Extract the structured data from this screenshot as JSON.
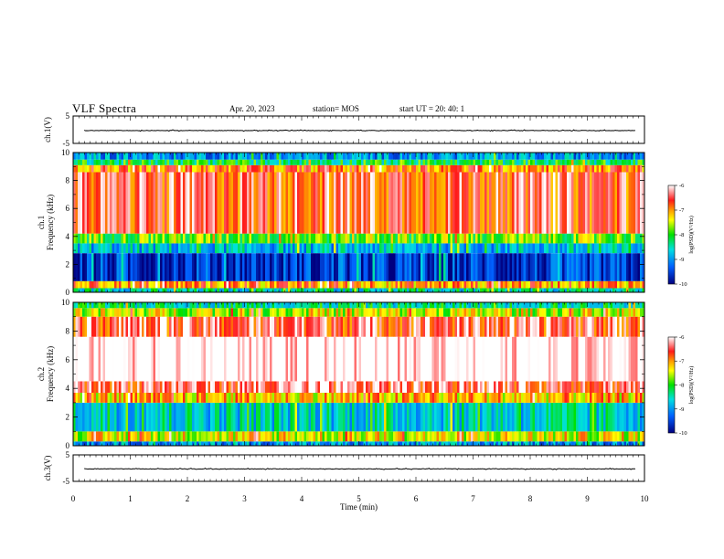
{
  "header": {
    "title": "VLF Spectra",
    "date": "Apr. 20, 2023",
    "station": "station= MOS",
    "start_ut": "start  UT  =   20: 40: 1"
  },
  "colors": {
    "white": "#ffffff",
    "red": "#ff1a1a",
    "orange": "#ff9900",
    "yellow": "#ffff00",
    "green": "#00e000",
    "cyan": "#00e0e0",
    "blue": "#0060ff",
    "navy": "#000080"
  },
  "chart_data": [
    {
      "id": "ch1_waveform",
      "type": "line",
      "ylabel": "ch.1(V)",
      "ylim": [
        -5,
        5
      ],
      "y_ticks": [
        "5",
        "-5"
      ],
      "xlim": [
        0,
        10
      ],
      "baseline_value": -0.3,
      "grid": false
    },
    {
      "id": "ch1_spectrogram",
      "type": "heatmap",
      "ylabel": "ch.1\nFrequency (kHz)",
      "ylim": [
        0,
        10
      ],
      "y_ticks": [
        "0",
        "2",
        "4",
        "6",
        "8",
        "10"
      ],
      "xlim": [
        0,
        10
      ],
      "colorbar": {
        "label": "log(PSD)(V²/Hz)",
        "ticks": [
          "-6",
          "-7",
          "-8",
          "-9",
          "-10"
        ],
        "range": [
          -10,
          -6
        ]
      },
      "bands": [
        {
          "from_khz": 0.0,
          "to_khz": 0.3,
          "level": -8.5
        },
        {
          "from_khz": 0.3,
          "to_khz": 0.8,
          "level": -7.0
        },
        {
          "from_khz": 0.8,
          "to_khz": 2.8,
          "level": -9.6
        },
        {
          "from_khz": 2.8,
          "to_khz": 3.5,
          "level": -8.8
        },
        {
          "from_khz": 3.5,
          "to_khz": 4.2,
          "level": -7.8
        },
        {
          "from_khz": 4.2,
          "to_khz": 8.6,
          "level": -6.6
        },
        {
          "from_khz": 8.6,
          "to_khz": 9.1,
          "level": -6.9
        },
        {
          "from_khz": 9.1,
          "to_khz": 9.5,
          "level": -8.2
        },
        {
          "from_khz": 9.5,
          "to_khz": 10.0,
          "level": -9.0
        }
      ]
    },
    {
      "id": "ch2_spectrogram",
      "type": "heatmap",
      "ylabel": "ch.2\nFrequency (kHz)",
      "ylim": [
        0,
        10
      ],
      "y_ticks": [
        "0",
        "2",
        "4",
        "6",
        "8",
        "10"
      ],
      "xlim": [
        0,
        10
      ],
      "colorbar": {
        "label": "log(PSD)(V²/Hz)",
        "ticks": [
          "-6",
          "-7",
          "-8",
          "-9",
          "-10"
        ],
        "range": [
          -10,
          -6
        ]
      },
      "bands": [
        {
          "from_khz": 0.0,
          "to_khz": 0.3,
          "level": -9.0
        },
        {
          "from_khz": 0.3,
          "to_khz": 1.0,
          "level": -7.4
        },
        {
          "from_khz": 1.0,
          "to_khz": 3.0,
          "level": -8.6
        },
        {
          "from_khz": 3.0,
          "to_khz": 3.7,
          "level": -7.2
        },
        {
          "from_khz": 3.7,
          "to_khz": 4.5,
          "level": -6.4
        },
        {
          "from_khz": 4.5,
          "to_khz": 7.6,
          "level": -5.8
        },
        {
          "from_khz": 7.6,
          "to_khz": 9.0,
          "level": -6.5
        },
        {
          "from_khz": 9.0,
          "to_khz": 9.6,
          "level": -7.5
        },
        {
          "from_khz": 9.6,
          "to_khz": 10.0,
          "level": -8.4
        }
      ]
    },
    {
      "id": "ch3_waveform",
      "type": "line",
      "ylabel": "ch.3(V)",
      "ylim": [
        -5,
        5
      ],
      "y_ticks": [
        "5",
        "-5"
      ],
      "xlim": [
        0,
        10
      ],
      "baseline_value": -0.3,
      "grid": false
    }
  ],
  "x_axis": {
    "label": "Time  (min)",
    "ticks": [
      "0",
      "1",
      "2",
      "3",
      "4",
      "5",
      "6",
      "7",
      "8",
      "9",
      "10"
    ],
    "range": [
      0,
      10
    ]
  }
}
